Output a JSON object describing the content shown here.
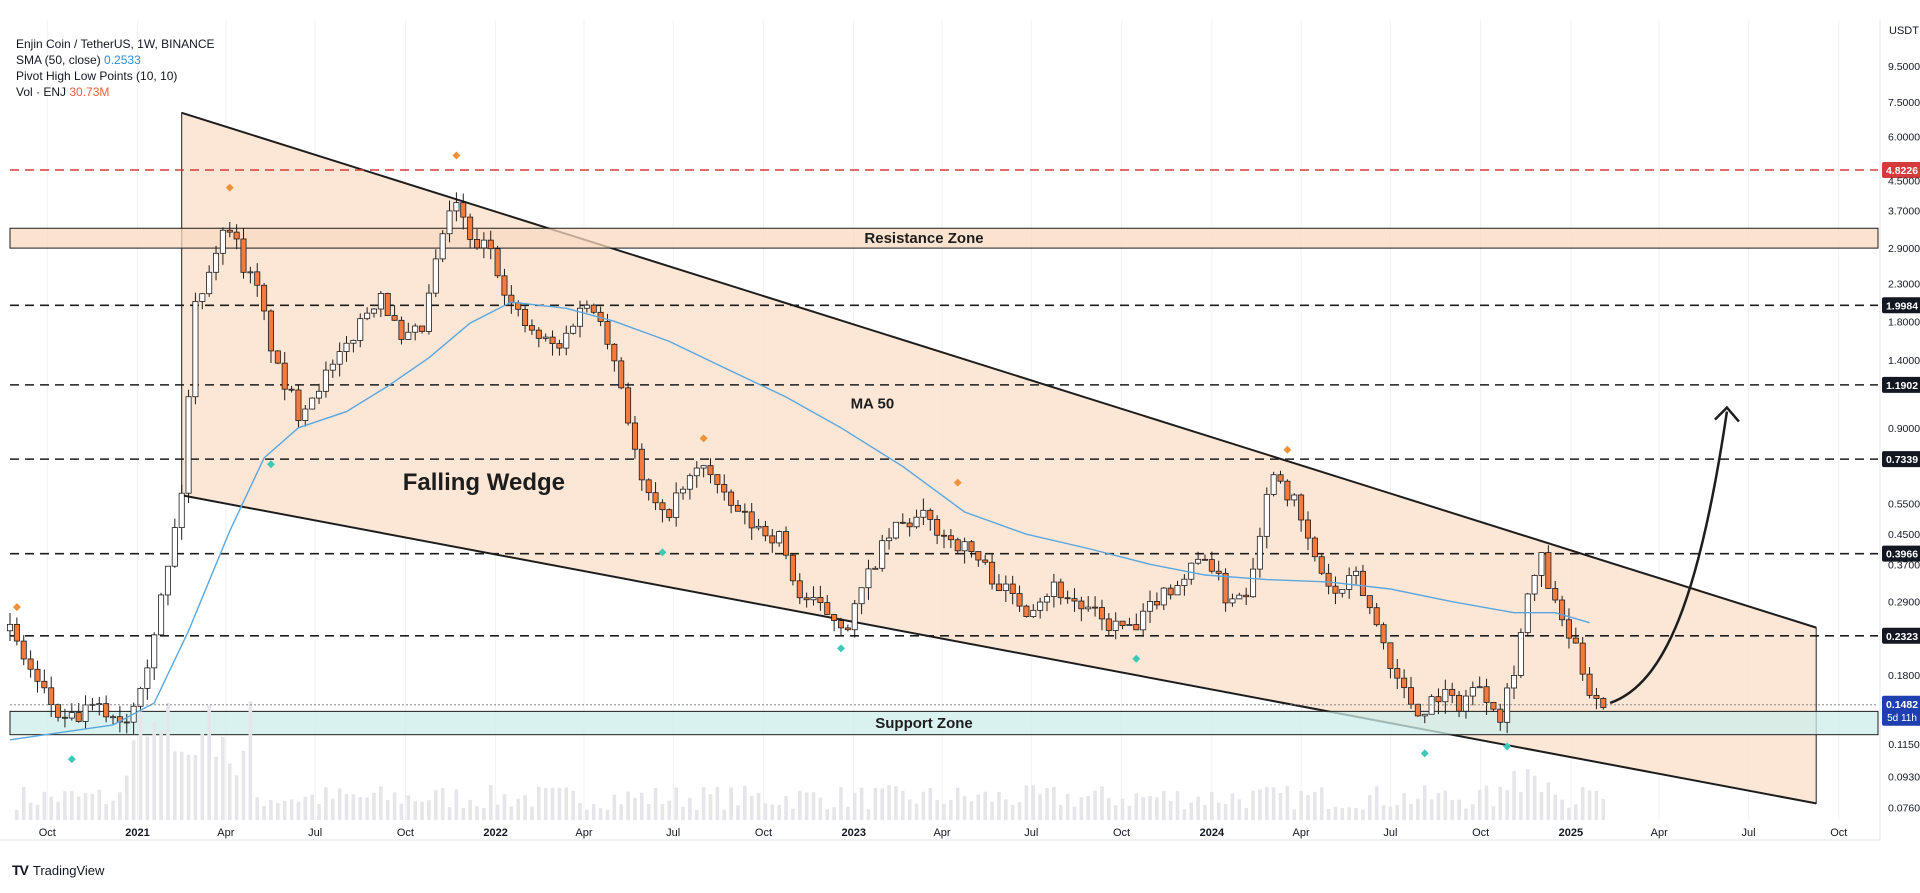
{
  "legend": {
    "symbol": "Enjin Coin / TetherUS, 1W, BINANCE",
    "sma_label": "SMA (50, close)",
    "sma_value": "0.2533",
    "pivot_label": "Pivot High Low Points (10, 10)",
    "vol_label": "Vol · ENJ",
    "vol_value": "30.73M"
  },
  "brand": {
    "name": "TradingView"
  },
  "colors": {
    "up": "#ffffff",
    "down": "#f47b3d",
    "wick": "#1d1d1d",
    "wedge_fill": "#fbe3cf",
    "ma": "#5aa7e0",
    "support": "#cdeee9",
    "resistance": "#f9d9c0",
    "pivot_high": "#f0923a",
    "pivot_low": "#3ec9b7",
    "last_price": "#1d3faf",
    "red_level": "#d63b3b"
  },
  "chart_data": {
    "type": "candlestick",
    "title": "Enjin Coin / TetherUS, 1W, BINANCE",
    "currency": "USDT",
    "y_scale": "log",
    "ylim": [
      0.07,
      12
    ],
    "xlim": [
      "2020-08-24",
      "2025-11-10"
    ],
    "y_ticks": [
      "9.5000",
      "7.5000",
      "6.0000",
      "4.5000",
      "3.7000",
      "2.9000",
      "2.3000",
      "1.8000",
      "1.4000",
      "0.9000",
      "0.5500",
      "0.4500",
      "0.3700",
      "0.2900",
      "0.1800",
      "0.1150",
      "0.0930",
      "0.0760"
    ],
    "x_ticks": [
      {
        "label": "Oct",
        "date": "2020-10-01"
      },
      {
        "label": "2021",
        "date": "2021-01-01"
      },
      {
        "label": "Apr",
        "date": "2021-04-01"
      },
      {
        "label": "Jul",
        "date": "2021-07-01"
      },
      {
        "label": "Oct",
        "date": "2021-10-01"
      },
      {
        "label": "2022",
        "date": "2022-01-01"
      },
      {
        "label": "Apr",
        "date": "2022-04-01"
      },
      {
        "label": "Jul",
        "date": "2022-07-01"
      },
      {
        "label": "Oct",
        "date": "2022-10-01"
      },
      {
        "label": "2023",
        "date": "2023-01-01"
      },
      {
        "label": "Apr",
        "date": "2023-04-01"
      },
      {
        "label": "Jul",
        "date": "2023-07-01"
      },
      {
        "label": "Oct",
        "date": "2023-10-01"
      },
      {
        "label": "2024",
        "date": "2024-01-01"
      },
      {
        "label": "Apr",
        "date": "2024-04-01"
      },
      {
        "label": "Jul",
        "date": "2024-07-01"
      },
      {
        "label": "Oct",
        "date": "2024-10-01"
      },
      {
        "label": "2025",
        "date": "2025-01-01"
      },
      {
        "label": "Apr",
        "date": "2025-04-01"
      },
      {
        "label": "Jul",
        "date": "2025-07-01"
      },
      {
        "label": "Oct",
        "date": "2025-10-01"
      }
    ],
    "levels": [
      {
        "price": 4.8226,
        "label": "4.8226",
        "style": "red"
      },
      {
        "price": 1.9984,
        "label": "1.9984",
        "style": "black"
      },
      {
        "price": 1.1902,
        "label": "1.1902",
        "style": "black"
      },
      {
        "price": 0.7339,
        "label": "0.7339",
        "style": "black"
      },
      {
        "price": 0.3966,
        "label": "0.3966",
        "style": "black"
      },
      {
        "price": 0.2323,
        "label": "0.2323",
        "style": "black"
      }
    ],
    "last_price": {
      "price": 0.1482,
      "label": "0.1482",
      "countdown": "5d 11h"
    },
    "zones": [
      {
        "name": "Resistance Zone",
        "low": 2.9,
        "high": 3.3
      },
      {
        "name": "Support Zone",
        "low": 0.122,
        "high": 0.142
      }
    ],
    "wedge": {
      "label": "Falling Wedge",
      "upper": [
        [
          "2021-02-15",
          7.0
        ],
        [
          "2025-09-08",
          0.245
        ]
      ],
      "lower": [
        [
          "2021-02-15",
          0.58
        ],
        [
          "2025-09-08",
          0.078
        ]
      ]
    },
    "ma_label": "MA 50",
    "ma_path": [
      [
        "2020-08-24",
        0.118
      ],
      [
        "2020-12-07",
        0.13
      ],
      [
        "2021-01-18",
        0.15
      ],
      [
        "2021-02-22",
        0.24
      ],
      [
        "2021-04-05",
        0.46
      ],
      [
        "2021-05-10",
        0.74
      ],
      [
        "2021-06-14",
        0.9
      ],
      [
        "2021-08-02",
        1.0
      ],
      [
        "2021-09-13",
        1.18
      ],
      [
        "2021-10-25",
        1.42
      ],
      [
        "2021-12-06",
        1.78
      ],
      [
        "2022-01-17",
        2.04
      ],
      [
        "2022-03-14",
        1.96
      ],
      [
        "2022-05-02",
        1.8
      ],
      [
        "2022-06-27",
        1.58
      ],
      [
        "2022-08-22",
        1.33
      ],
      [
        "2022-10-24",
        1.1
      ],
      [
        "2022-12-19",
        0.9
      ],
      [
        "2023-02-20",
        0.7
      ],
      [
        "2023-04-24",
        0.52
      ],
      [
        "2023-06-26",
        0.45
      ],
      [
        "2023-08-28",
        0.41
      ],
      [
        "2023-10-30",
        0.37
      ],
      [
        "2023-12-25",
        0.345
      ],
      [
        "2024-02-26",
        0.335
      ],
      [
        "2024-04-29",
        0.33
      ],
      [
        "2024-07-01",
        0.315
      ],
      [
        "2024-09-02",
        0.29
      ],
      [
        "2024-11-04",
        0.27
      ],
      [
        "2024-12-16",
        0.27
      ],
      [
        "2025-01-20",
        0.253
      ]
    ],
    "price_path": [
      [
        "2020-08-24",
        0.24
      ],
      [
        "2020-09-21",
        0.17
      ],
      [
        "2020-10-19",
        0.13
      ],
      [
        "2020-11-16",
        0.145
      ],
      [
        "2020-12-21",
        0.135
      ],
      [
        "2021-01-11",
        0.2
      ],
      [
        "2021-02-01",
        0.36
      ],
      [
        "2021-02-15",
        0.6
      ],
      [
        "2021-03-01",
        2.0
      ],
      [
        "2021-03-22",
        2.9
      ],
      [
        "2021-04-05",
        3.4
      ],
      [
        "2021-04-19",
        2.6
      ],
      [
        "2021-05-03",
        2.2
      ],
      [
        "2021-05-24",
        1.3
      ],
      [
        "2021-06-14",
        1.0
      ],
      [
        "2021-07-05",
        1.2
      ],
      [
        "2021-07-26",
        1.4
      ],
      [
        "2021-08-16",
        1.8
      ],
      [
        "2021-09-06",
        2.2
      ],
      [
        "2021-09-27",
        1.55
      ],
      [
        "2021-10-18",
        1.7
      ],
      [
        "2021-11-08",
        3.2
      ],
      [
        "2021-11-22",
        3.9
      ],
      [
        "2021-12-06",
        3.0
      ],
      [
        "2021-12-27",
        2.9
      ],
      [
        "2022-01-17",
        2.0
      ],
      [
        "2022-02-07",
        1.65
      ],
      [
        "2022-03-07",
        1.5
      ],
      [
        "2022-03-28",
        2.0
      ],
      [
        "2022-04-18",
        1.9
      ],
      [
        "2022-05-09",
        1.2
      ],
      [
        "2022-05-30",
        0.62
      ],
      [
        "2022-06-20",
        0.5
      ],
      [
        "2022-07-11",
        0.6
      ],
      [
        "2022-08-01",
        0.72
      ],
      [
        "2022-08-22",
        0.56
      ],
      [
        "2022-09-19",
        0.48
      ],
      [
        "2022-10-17",
        0.44
      ],
      [
        "2022-11-07",
        0.3
      ],
      [
        "2022-12-05",
        0.27
      ],
      [
        "2022-12-26",
        0.25
      ],
      [
        "2023-01-23",
        0.38
      ],
      [
        "2023-02-13",
        0.47
      ],
      [
        "2023-03-13",
        0.5
      ],
      [
        "2023-04-03",
        0.45
      ],
      [
        "2023-05-01",
        0.4
      ],
      [
        "2023-06-05",
        0.31
      ],
      [
        "2023-06-26",
        0.28
      ],
      [
        "2023-07-24",
        0.32
      ],
      [
        "2023-08-21",
        0.28
      ],
      [
        "2023-09-18",
        0.25
      ],
      [
        "2023-10-16",
        0.24
      ],
      [
        "2023-11-06",
        0.3
      ],
      [
        "2023-12-04",
        0.34
      ],
      [
        "2023-12-25",
        0.4
      ],
      [
        "2024-01-15",
        0.3
      ],
      [
        "2024-02-05",
        0.31
      ],
      [
        "2024-03-04",
        0.7
      ],
      [
        "2024-03-25",
        0.55
      ],
      [
        "2024-04-15",
        0.38
      ],
      [
        "2024-05-06",
        0.3
      ],
      [
        "2024-05-27",
        0.34
      ],
      [
        "2024-06-17",
        0.25
      ],
      [
        "2024-07-08",
        0.175
      ],
      [
        "2024-07-29",
        0.14
      ],
      [
        "2024-08-19",
        0.16
      ],
      [
        "2024-09-09",
        0.15
      ],
      [
        "2024-09-30",
        0.17
      ],
      [
        "2024-10-21",
        0.14
      ],
      [
        "2024-11-04",
        0.19
      ],
      [
        "2024-11-18",
        0.3
      ],
      [
        "2024-12-02",
        0.38
      ],
      [
        "2024-12-16",
        0.28
      ],
      [
        "2025-01-06",
        0.21
      ],
      [
        "2025-01-20",
        0.165
      ],
      [
        "2025-02-03",
        0.1482
      ]
    ],
    "pivots": {
      "high": [
        [
          "2020-08-31",
          0.28
        ],
        [
          "2021-04-05",
          4.3
        ],
        [
          "2021-11-22",
          5.3
        ],
        [
          "2022-08-01",
          0.84
        ],
        [
          "2023-04-17",
          0.63
        ],
        [
          "2024-03-18",
          0.78
        ]
      ],
      "low": [
        [
          "2020-10-26",
          0.104
        ],
        [
          "2021-05-17",
          0.71
        ],
        [
          "2022-06-20",
          0.4
        ],
        [
          "2022-12-19",
          0.214
        ],
        [
          "2023-10-16",
          0.2
        ],
        [
          "2024-08-05",
          0.108
        ],
        [
          "2024-10-28",
          0.113
        ]
      ]
    },
    "projection": [
      [
        "2025-02-10",
        0.15
      ],
      [
        "2025-04-07",
        0.17
      ],
      [
        "2025-05-12",
        0.3
      ],
      [
        "2025-06-09",
        1.0
      ]
    ]
  }
}
